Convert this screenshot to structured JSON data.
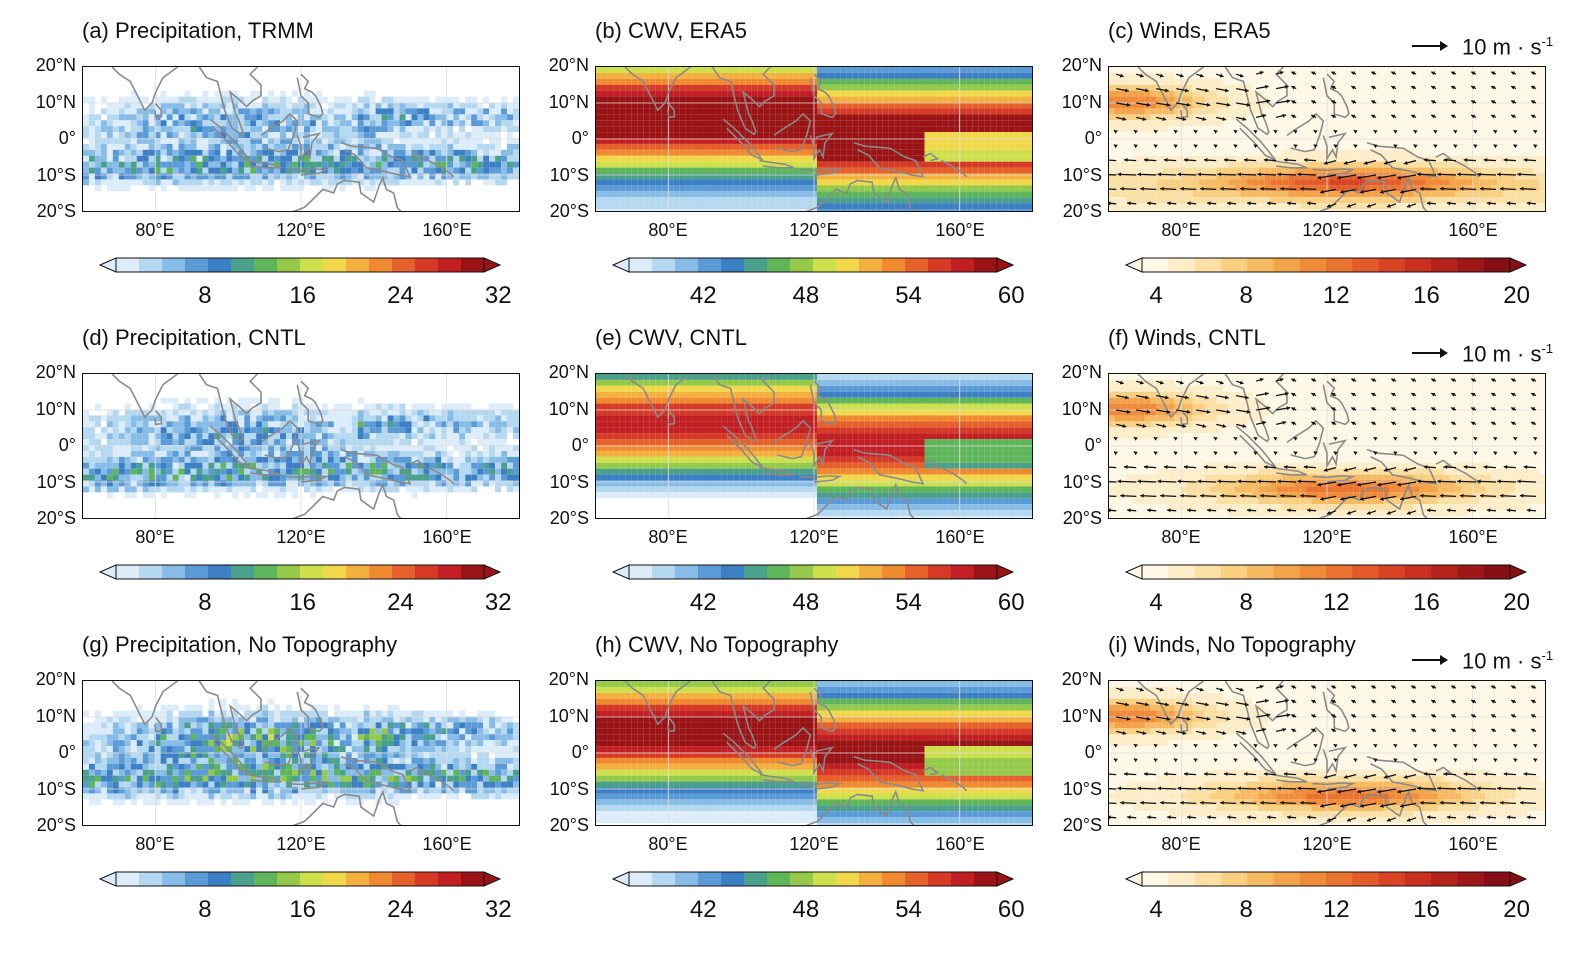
{
  "figure": {
    "x_ticks": [
      "80°E",
      "120°E",
      "160°E"
    ],
    "y_ticks": [
      "20°N",
      "10°N",
      "0°",
      "10°S",
      "20°S"
    ],
    "reference_vector": {
      "value": "10",
      "unit_text": "m · s",
      "unit_exp": "-1"
    }
  },
  "colorbars": {
    "precip": {
      "ticks": [
        "8",
        "16",
        "24",
        "32"
      ],
      "colors": [
        "#dcecf9",
        "#b5d8f1",
        "#86bce6",
        "#5a9ad6",
        "#3d7fc4",
        "#4aa08a",
        "#5fb65a",
        "#95c94a",
        "#cde04b",
        "#f1d84a",
        "#f4b03e",
        "#ef8a31",
        "#e5602a",
        "#d63a26",
        "#c11f24",
        "#9a1416"
      ]
    },
    "cwv": {
      "ticks": [
        "42",
        "48",
        "54",
        "60"
      ],
      "colors": [
        "#dcecf9",
        "#b5d8f1",
        "#86bce6",
        "#5a9ad6",
        "#3d7fc4",
        "#4aa08a",
        "#5fb65a",
        "#95c94a",
        "#cde04b",
        "#f1d84a",
        "#f4b03e",
        "#ef8a31",
        "#e5602a",
        "#d63a26",
        "#c11f24",
        "#9a1416"
      ]
    },
    "winds": {
      "ticks": [
        "4",
        "8",
        "12",
        "16",
        "20"
      ],
      "colors": [
        "#fff8e6",
        "#fdeec9",
        "#fbe0a6",
        "#f9cf82",
        "#f6ba62",
        "#f3a34a",
        "#ef8b3a",
        "#ea7330",
        "#e35b29",
        "#d84324",
        "#c9301f",
        "#b4221c",
        "#9e1819",
        "#860f16"
      ]
    }
  },
  "panels": [
    {
      "title": "(a) Precipitation, TRMM",
      "kind": "precip"
    },
    {
      "title": "(b) CWV, ERA5",
      "kind": "cwv"
    },
    {
      "title": "(c) Winds, ERA5",
      "kind": "winds"
    },
    {
      "title": "(d) Precipitation, CNTL",
      "kind": "precip"
    },
    {
      "title": "(e) CWV, CNTL",
      "kind": "cwv"
    },
    {
      "title": "(f) Winds, CNTL",
      "kind": "winds"
    },
    {
      "title": "(g) Precipitation, No Topography",
      "kind": "precip"
    },
    {
      "title": "(h) CWV, No Topography",
      "kind": "cwv"
    },
    {
      "title": "(i) Winds, No Topography",
      "kind": "winds"
    }
  ],
  "chart_data": [
    {
      "type": "heatmap",
      "title": "(a) Precipitation, TRMM",
      "xlim": [
        60,
        180
      ],
      "ylim": [
        -20,
        20
      ],
      "x_ticks": [
        "80°E",
        "120°E",
        "160°E"
      ],
      "y_ticks": [
        "20°N",
        "10°N",
        "0°",
        "10°S",
        "20°S"
      ],
      "colorbar_ticks": [
        8,
        16,
        24,
        32
      ],
      "colorbar_extend": "both"
    },
    {
      "type": "heatmap",
      "title": "(b) CWV, ERA5",
      "xlim": [
        60,
        180
      ],
      "ylim": [
        -20,
        20
      ],
      "x_ticks": [
        "80°E",
        "120°E",
        "160°E"
      ],
      "y_ticks": [
        "20°N",
        "10°N",
        "0°",
        "10°S",
        "20°S"
      ],
      "colorbar_ticks": [
        42,
        48,
        54,
        60
      ],
      "colorbar_extend": "both"
    },
    {
      "type": "heatmap",
      "title": "(c) Winds, ERA5",
      "xlim": [
        60,
        180
      ],
      "ylim": [
        -20,
        20
      ],
      "x_ticks": [
        "80°E",
        "120°E",
        "160°E"
      ],
      "y_ticks": [
        "20°N",
        "10°N",
        "0°",
        "10°S",
        "20°S"
      ],
      "colorbar_ticks": [
        4,
        8,
        12,
        16,
        20
      ],
      "colorbar_extend": "both",
      "reference_vector": "10 m·s⁻¹"
    },
    {
      "type": "heatmap",
      "title": "(d) Precipitation, CNTL",
      "xlim": [
        60,
        180
      ],
      "ylim": [
        -20,
        20
      ],
      "x_ticks": [
        "80°E",
        "120°E",
        "160°E"
      ],
      "y_ticks": [
        "20°N",
        "10°N",
        "0°",
        "10°S",
        "20°S"
      ],
      "colorbar_ticks": [
        8,
        16,
        24,
        32
      ],
      "colorbar_extend": "both"
    },
    {
      "type": "heatmap",
      "title": "(e) CWV, CNTL",
      "xlim": [
        60,
        180
      ],
      "ylim": [
        -20,
        20
      ],
      "x_ticks": [
        "80°E",
        "120°E",
        "160°E"
      ],
      "y_ticks": [
        "20°N",
        "10°N",
        "0°",
        "10°S",
        "20°S"
      ],
      "colorbar_ticks": [
        42,
        48,
        54,
        60
      ],
      "colorbar_extend": "both"
    },
    {
      "type": "heatmap",
      "title": "(f) Winds, CNTL",
      "xlim": [
        60,
        180
      ],
      "ylim": [
        -20,
        20
      ],
      "x_ticks": [
        "80°E",
        "120°E",
        "160°E"
      ],
      "y_ticks": [
        "20°N",
        "10°N",
        "0°",
        "10°S",
        "20°S"
      ],
      "colorbar_ticks": [
        4,
        8,
        12,
        16,
        20
      ],
      "colorbar_extend": "both",
      "reference_vector": "10 m·s⁻¹"
    },
    {
      "type": "heatmap",
      "title": "(g) Precipitation, No Topography",
      "xlim": [
        60,
        180
      ],
      "ylim": [
        -20,
        20
      ],
      "x_ticks": [
        "80°E",
        "120°E",
        "160°E"
      ],
      "y_ticks": [
        "20°N",
        "10°N",
        "0°",
        "10°S",
        "20°S"
      ],
      "colorbar_ticks": [
        8,
        16,
        24,
        32
      ],
      "colorbar_extend": "both"
    },
    {
      "type": "heatmap",
      "title": "(h) CWV, No Topography",
      "xlim": [
        60,
        180
      ],
      "ylim": [
        -20,
        20
      ],
      "x_ticks": [
        "80°E",
        "120°E",
        "160°E"
      ],
      "y_ticks": [
        "20°N",
        "10°N",
        "0°",
        "10°S",
        "20°S"
      ],
      "colorbar_ticks": [
        42,
        48,
        54,
        60
      ],
      "colorbar_extend": "both"
    },
    {
      "type": "heatmap",
      "title": "(i) Winds, No Topography",
      "xlim": [
        60,
        180
      ],
      "ylim": [
        -20,
        20
      ],
      "x_ticks": [
        "80°E",
        "120°E",
        "160°E"
      ],
      "y_ticks": [
        "20°N",
        "10°N",
        "0°",
        "10°S",
        "20°S"
      ],
      "colorbar_ticks": [
        4,
        8,
        12,
        16,
        20
      ],
      "colorbar_extend": "both",
      "reference_vector": "10 m·s⁻¹"
    }
  ]
}
